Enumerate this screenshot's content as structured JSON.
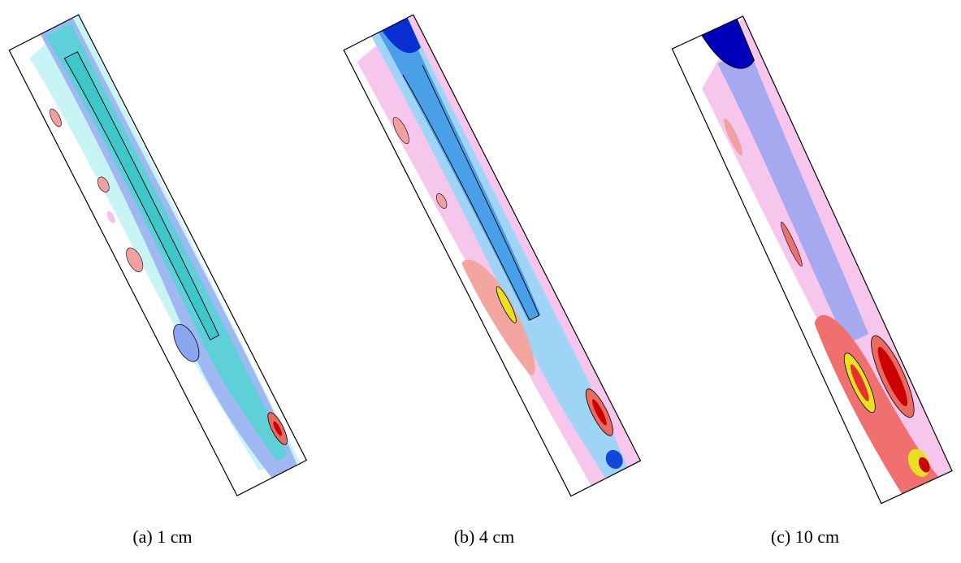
{
  "panels": [
    {
      "caption": "(a) 1 cm"
    },
    {
      "caption": "(b) 4 cm"
    },
    {
      "caption": "(c) 10 cm"
    }
  ]
}
